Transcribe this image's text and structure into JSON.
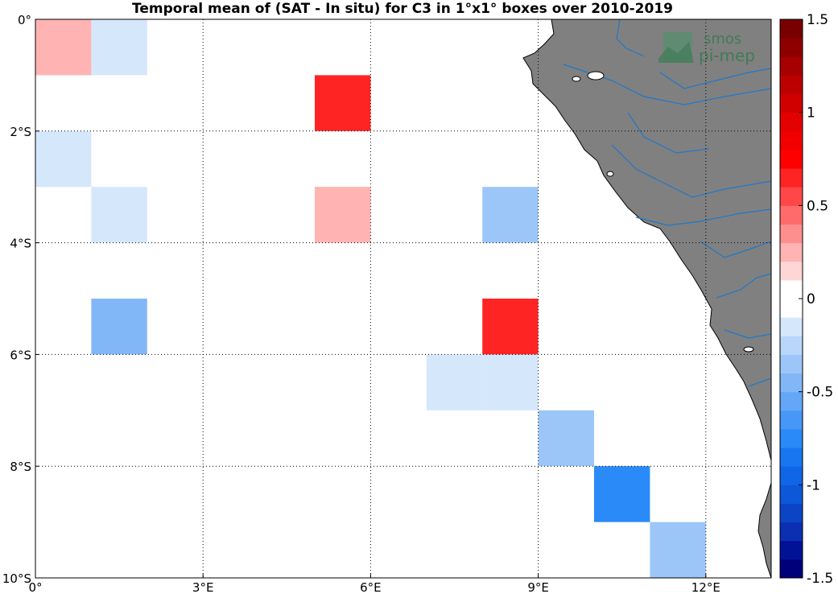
{
  "title": "Temporal mean of (SAT - In situ) for C3 in 1°x1° boxes over 2010-2019",
  "logo": {
    "line1": "smos",
    "line2": "pi-mep"
  },
  "map": {
    "lon_range": [
      0,
      13.2
    ],
    "lat_range": [
      -10,
      0
    ],
    "x_ticks": [
      {
        "value": 0,
        "label": "0°"
      },
      {
        "value": 3,
        "label": "3°E"
      },
      {
        "value": 6,
        "label": "6°E"
      },
      {
        "value": 9,
        "label": "9°E"
      },
      {
        "value": 12,
        "label": "12°E"
      }
    ],
    "y_ticks": [
      {
        "value": 0,
        "label": "0°"
      },
      {
        "value": -2,
        "label": "2°S"
      },
      {
        "value": -4,
        "label": "4°S"
      },
      {
        "value": -6,
        "label": "6°S"
      },
      {
        "value": -8,
        "label": "8°S"
      },
      {
        "value": -10,
        "label": "10°S"
      }
    ],
    "land_color": "#808080",
    "river_color": "#1f78c8"
  },
  "colorbar": {
    "range": [
      -1.5,
      1.5
    ],
    "ticks": [
      {
        "value": 1.5,
        "label": "1.5"
      },
      {
        "value": 1,
        "label": "1"
      },
      {
        "value": 0.5,
        "label": "0.5"
      },
      {
        "value": 0,
        "label": "0"
      },
      {
        "value": -0.5,
        "label": "-0.5"
      },
      {
        "value": -1,
        "label": "-1"
      },
      {
        "value": -1.5,
        "label": "-1.5"
      }
    ],
    "colors": [
      "#00007a",
      "#001296",
      "#0a2fb0",
      "#0b45c6",
      "#0d58d8",
      "#1066e6",
      "#1877f0",
      "#2a8af8",
      "#4797f7",
      "#64a7f7",
      "#82b7f7",
      "#9dc6f8",
      "#b9d7fa",
      "#d5e7fb",
      "#ffffff",
      "#ffffff",
      "#ffd6d6",
      "#ffb3b3",
      "#ff8f8f",
      "#ff6b6b",
      "#ff4747",
      "#ff2424",
      "#ff0000",
      "#f20000",
      "#e30000",
      "#d00000",
      "#bc0000",
      "#a60000",
      "#8e0000",
      "#780000"
    ]
  },
  "chart_data": {
    "type": "heatmap",
    "title": "Temporal mean of (SAT - In situ) for C3 in 1°x1° boxes over 2010-2019",
    "cells": [
      {
        "lon": 0,
        "lat": 0,
        "value": 0.25
      },
      {
        "lon": 1,
        "lat": 0,
        "value": -0.2
      },
      {
        "lon": 5,
        "lat": -1,
        "value": 0.6
      },
      {
        "lon": 0,
        "lat": -2,
        "value": -0.1
      },
      {
        "lon": 1,
        "lat": -3,
        "value": -0.2
      },
      {
        "lon": 5,
        "lat": -3,
        "value": 0.25
      },
      {
        "lon": 8,
        "lat": -3,
        "value": -0.35
      },
      {
        "lon": 1,
        "lat": -5,
        "value": -0.45
      },
      {
        "lon": 8,
        "lat": -5,
        "value": 0.6
      },
      {
        "lon": 7,
        "lat": -6,
        "value": -0.2
      },
      {
        "lon": 8,
        "lat": -6,
        "value": -0.2
      },
      {
        "lon": 9,
        "lat": -7,
        "value": -0.3
      },
      {
        "lon": 10,
        "lat": -8,
        "value": -0.75
      },
      {
        "lon": 11,
        "lat": -9,
        "value": -0.3
      }
    ]
  }
}
